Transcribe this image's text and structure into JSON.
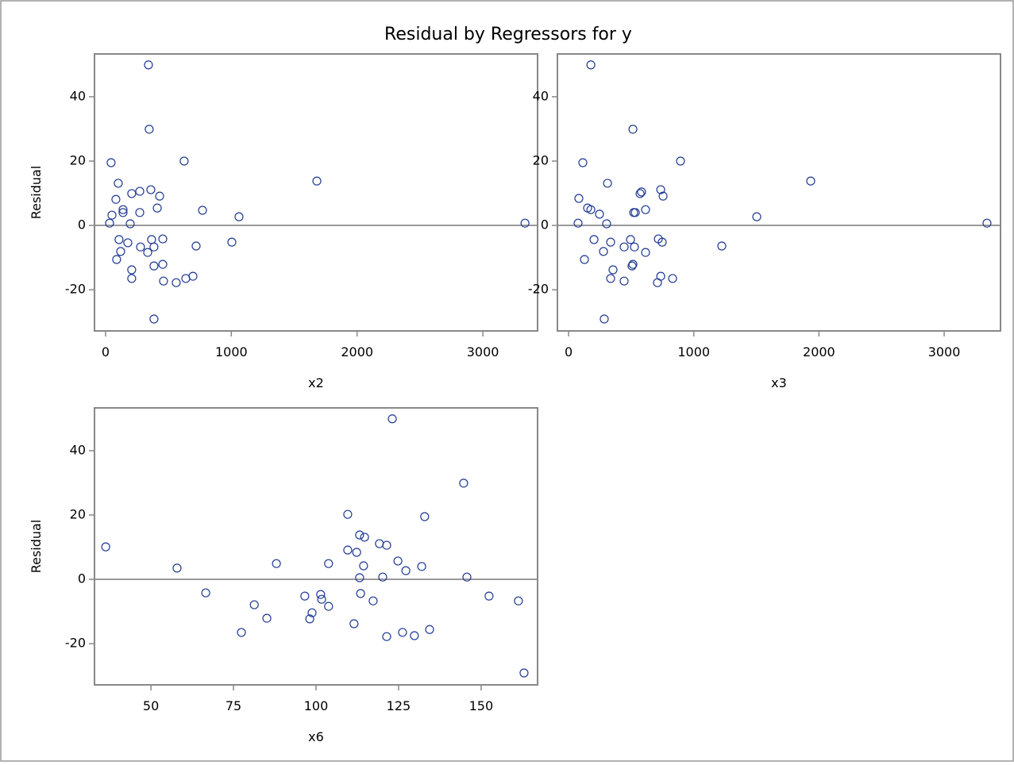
{
  "title": "Residual by Regressors for y",
  "chart_data": [
    {
      "type": "scatter",
      "x_label": "x2",
      "y_label": "Residual",
      "color": "#1f3a93",
      "reference_y": 0,
      "xlim": [
        -88,
        3435
      ],
      "ylim": [
        -32.8,
        53.3
      ],
      "xticks": [
        0,
        1000,
        2000,
        3000
      ],
      "yticks": [
        -20,
        0,
        20,
        40
      ],
      "x": [
        341,
        347,
        44,
        625,
        1680,
        101,
        360,
        272,
        208,
        430,
        82,
        411,
        771,
        139,
        139,
        272,
        51,
        1061,
        32,
        196,
        3335,
        107,
        366,
        455,
        177,
        1004,
        278,
        385,
        720,
        120,
        335,
        88,
        385,
        455,
        208,
        208,
        461,
        638,
        695,
        562,
        385
      ],
      "y": [
        49.9,
        29.9,
        19.5,
        20.0,
        13.8,
        13.1,
        11.1,
        10.6,
        9.9,
        9.1,
        8.1,
        5.4,
        4.7,
        4.9,
        4.0,
        4.0,
        3.2,
        2.7,
        0.7,
        0.5,
        0.7,
        -4.4,
        -4.4,
        -4.2,
        -5.4,
        -5.2,
        -6.7,
        -6.7,
        -6.4,
        -8.1,
        -8.4,
        -10.6,
        -12.6,
        -12.1,
        -13.8,
        -16.5,
        -17.3,
        -16.5,
        -15.8,
        -17.8,
        -29.1
      ]
    },
    {
      "type": "scatter",
      "x_label": "x3",
      "y_label": "Residual",
      "color": "#1f3a93",
      "reference_y": 0,
      "xlim": [
        -89,
        3450
      ],
      "ylim": [
        -32.8,
        53.3
      ],
      "xticks": [
        0,
        1000,
        2000,
        3000
      ],
      "yticks": [
        -20,
        0,
        20,
        40
      ],
      "x": [
        178,
        514,
        114,
        894,
        1934,
        311,
        736,
        583,
        571,
        755,
        82,
        152,
        178,
        615,
        247,
        533,
        520,
        1503,
        76,
        304,
        3342,
        203,
        495,
        717,
        748,
        336,
        444,
        526,
        1224,
        279,
        615,
        127,
        507,
        514,
        355,
        336,
        444,
        831,
        736,
        710,
        285
      ],
      "y": [
        49.9,
        29.9,
        19.5,
        20.0,
        13.8,
        13.1,
        11.1,
        10.4,
        9.9,
        9.1,
        8.4,
        5.4,
        4.9,
        4.9,
        3.5,
        4.0,
        4.0,
        2.7,
        0.7,
        0.5,
        0.7,
        -4.4,
        -4.4,
        -4.2,
        -5.2,
        -5.2,
        -6.7,
        -6.7,
        -6.4,
        -8.1,
        -8.4,
        -10.6,
        -12.6,
        -12.1,
        -13.8,
        -16.5,
        -17.3,
        -16.5,
        -15.8,
        -17.8,
        -29.1
      ]
    },
    {
      "type": "scatter",
      "x_label": "x6",
      "y_label": "Residual",
      "color": "#1f3a93",
      "reference_y": 0,
      "xlim": [
        32.9,
        167.1
      ],
      "ylim": [
        -32.8,
        53.3
      ],
      "xticks": [
        50,
        75,
        100,
        125,
        150
      ],
      "yticks": [
        -20,
        0,
        20,
        40
      ],
      "x": [
        123.1,
        144.7,
        36.3,
        132.9,
        109.6,
        113.2,
        114.7,
        119.2,
        121.4,
        109.6,
        112.3,
        124.8,
        88.0,
        103.8,
        114.4,
        132.0,
        57.9,
        127.2,
        145.7,
        120.2,
        113.2,
        66.6,
        101.4,
        113.5,
        96.6,
        152.4,
        101.7,
        161.3,
        117.3,
        81.3,
        103.8,
        98.8,
        98.1,
        85.1,
        111.5,
        77.4,
        134.4,
        126.2,
        129.8,
        121.4,
        163.0
      ],
      "y": [
        49.9,
        29.9,
        10.1,
        19.5,
        20.2,
        13.8,
        13.1,
        11.1,
        10.6,
        9.1,
        8.4,
        5.7,
        4.9,
        4.9,
        4.2,
        4.0,
        3.5,
        2.7,
        0.7,
        0.7,
        0.5,
        -4.2,
        -4.7,
        -4.4,
        -5.2,
        -5.2,
        -6.2,
        -6.7,
        -6.7,
        -7.9,
        -8.4,
        -10.4,
        -12.3,
        -12.1,
        -13.8,
        -16.5,
        -15.6,
        -16.5,
        -17.5,
        -17.8,
        -29.1
      ]
    }
  ]
}
